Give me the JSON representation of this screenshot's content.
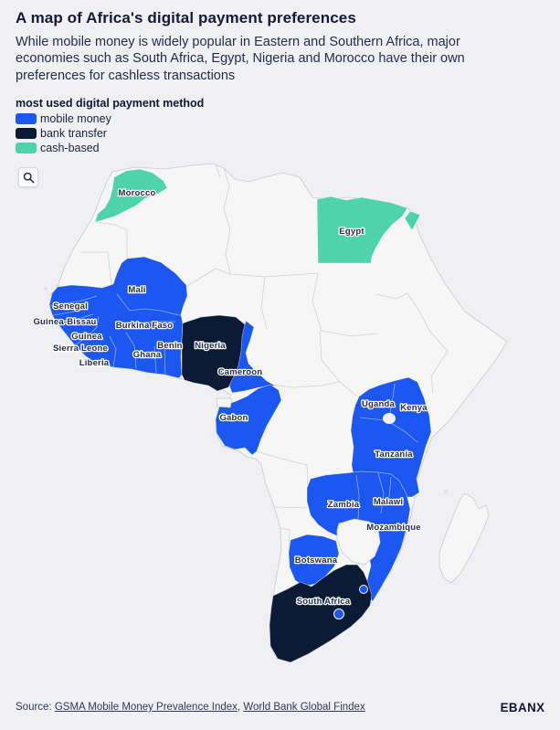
{
  "header": {
    "title": "A map of Africa's digital payment preferences",
    "subtitle": "While mobile money is widely popular in Eastern and Southern Africa, major economies such as South Africa, Egypt, Nigeria and Morocco have their own preferences for cashless transactions"
  },
  "legend": {
    "title": "most used digital payment method",
    "items": [
      {
        "label": "mobile money",
        "color": "#1c57f2"
      },
      {
        "label": "bank transfer",
        "color": "#0b1a35"
      },
      {
        "label": "cash-based",
        "color": "#4ed3ab"
      }
    ]
  },
  "map": {
    "land_color": "#f6f6f7",
    "border_color": "#c8cbd1",
    "countries": [
      {
        "name": "Morocco",
        "method": "cash-based"
      },
      {
        "name": "Egypt",
        "method": "cash-based"
      },
      {
        "name": "Mali",
        "method": "mobile money"
      },
      {
        "name": "Senegal",
        "method": "mobile money"
      },
      {
        "name": "Guinea-Bissau",
        "method": "mobile money"
      },
      {
        "name": "Burkina Faso",
        "method": "mobile money"
      },
      {
        "name": "Guinea",
        "method": "mobile money"
      },
      {
        "name": "Sierra Leone",
        "method": "mobile money"
      },
      {
        "name": "Benin",
        "method": "mobile money"
      },
      {
        "name": "Nigeria",
        "method": "bank transfer"
      },
      {
        "name": "Ghana",
        "method": "mobile money"
      },
      {
        "name": "Liberia",
        "method": "mobile money"
      },
      {
        "name": "Cameroon",
        "method": "mobile money"
      },
      {
        "name": "Gabon",
        "method": "mobile money"
      },
      {
        "name": "Uganda",
        "method": "mobile money"
      },
      {
        "name": "Kenya",
        "method": "mobile money"
      },
      {
        "name": "Tanzania",
        "method": "mobile money"
      },
      {
        "name": "Zambia",
        "method": "mobile money"
      },
      {
        "name": "Malawi",
        "method": "mobile money"
      },
      {
        "name": "Mozambique",
        "method": "mobile money"
      },
      {
        "name": "Botswana",
        "method": "mobile money"
      },
      {
        "name": "South Africa",
        "method": "bank transfer"
      }
    ]
  },
  "footer": {
    "source_label": "Source:",
    "links": [
      "GSMA Mobile Money Prevalence Index",
      "World Bank Global Findex"
    ],
    "separator": ", ",
    "brand": "EBANX"
  }
}
